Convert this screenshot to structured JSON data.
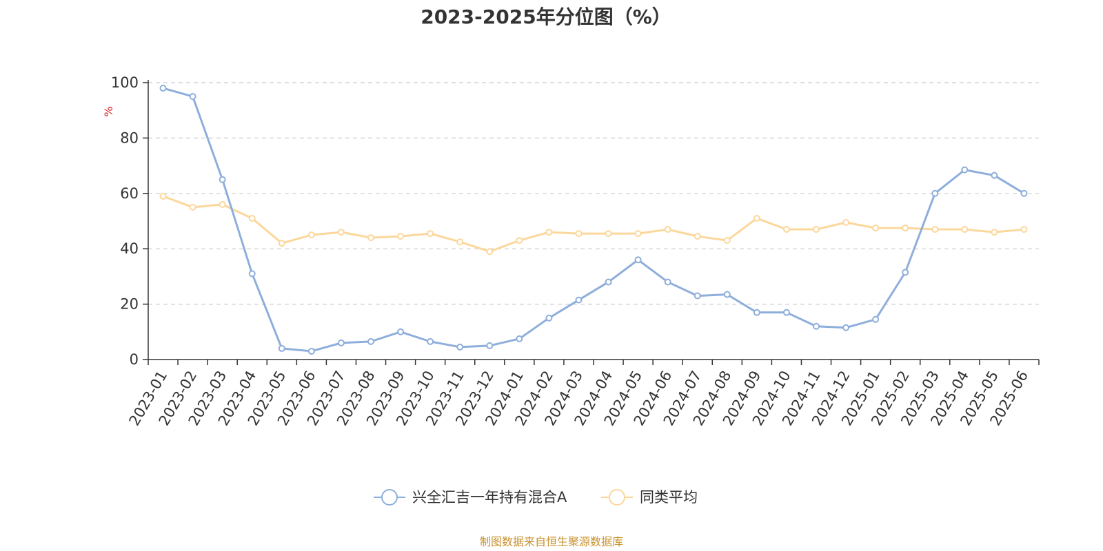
{
  "chart_data": {
    "type": "line",
    "title": "2023-2025年分位图（%）",
    "ylabel": "%",
    "xlabel": "",
    "ylim": [
      0,
      100
    ],
    "yticks": [
      0,
      20,
      40,
      60,
      80,
      100
    ],
    "grid": true,
    "legend_position": "bottom",
    "categories": [
      "2023-01",
      "2023-02",
      "2023-03",
      "2023-04",
      "2023-05",
      "2023-06",
      "2023-07",
      "2023-08",
      "2023-09",
      "2023-10",
      "2023-11",
      "2023-12",
      "2024-01",
      "2024-02",
      "2024-03",
      "2024-04",
      "2024-05",
      "2024-06",
      "2024-07",
      "2024-08",
      "2024-09",
      "2024-10",
      "2024-11",
      "2024-12",
      "2025-01",
      "2025-02",
      "2025-03",
      "2025-04",
      "2025-05",
      "2025-06"
    ],
    "series": [
      {
        "name": "兴全汇吉一年持有混合A",
        "color": "#8eaedb",
        "values": [
          98,
          95,
          65,
          31,
          4,
          3,
          6,
          6.5,
          10,
          6.5,
          4.5,
          5,
          7.5,
          15,
          21.5,
          28,
          36,
          28,
          23,
          23.5,
          17,
          17,
          12,
          11.5,
          14.5,
          31.5,
          60,
          68.5,
          66.5,
          60
        ]
      },
      {
        "name": "同类平均",
        "color": "#fcd79b",
        "values": [
          59,
          55,
          56,
          51,
          42,
          45,
          46,
          44,
          44.5,
          45.5,
          42.5,
          39,
          43,
          46,
          45.5,
          45.5,
          45.5,
          47,
          44.5,
          43,
          51,
          47,
          47,
          49.5,
          47.5,
          47.5,
          47,
          47,
          46,
          47
        ]
      }
    ],
    "source": "制图数据来自恒生聚源数据库",
    "unit_color": "#e02020",
    "source_color": "#c8922e",
    "axis_color": "#333333",
    "grid_color": "#cccccc"
  }
}
